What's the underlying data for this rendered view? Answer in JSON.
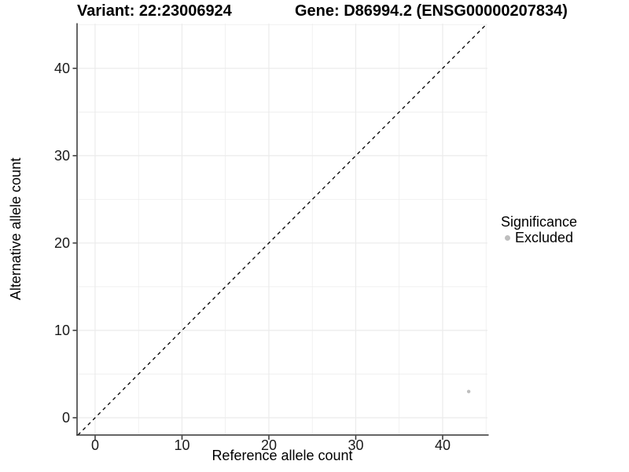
{
  "chart_data": {
    "type": "scatter",
    "titles": {
      "left": "Variant: 22:23006924",
      "right": "Gene: D86994.2 (ENSG00000207834)"
    },
    "xlabel": "Reference allele count",
    "ylabel": "Alternative allele count",
    "xlim": [
      -2.08,
      45.16
    ],
    "ylim": [
      -1.98,
      45.12
    ],
    "x_ticks": [
      0,
      10,
      20,
      30,
      40
    ],
    "y_ticks": [
      0,
      10,
      20,
      30,
      40
    ],
    "x_minor_ticks": [
      5,
      15,
      25,
      35,
      45
    ],
    "y_minor_ticks": [
      5,
      15,
      25,
      35,
      45
    ],
    "grid": true,
    "reference_line": {
      "equation": "y = x",
      "style": "dashed",
      "color": "#000000"
    },
    "series": [
      {
        "name": "Excluded",
        "color": "#bebebe",
        "points": [
          {
            "x": 43,
            "y": 3
          }
        ]
      }
    ],
    "legend": {
      "title": "Significance",
      "position": "right",
      "items": [
        {
          "label": "Excluded",
          "color": "#bebebe"
        }
      ]
    },
    "style": {
      "background": "#ffffff",
      "grid_major_color": "#ebebeb",
      "grid_minor_color": "#ebebeb",
      "axis_line_color": "#333333",
      "tick_color": "#333333",
      "text_color": "#1a1a1a"
    }
  }
}
